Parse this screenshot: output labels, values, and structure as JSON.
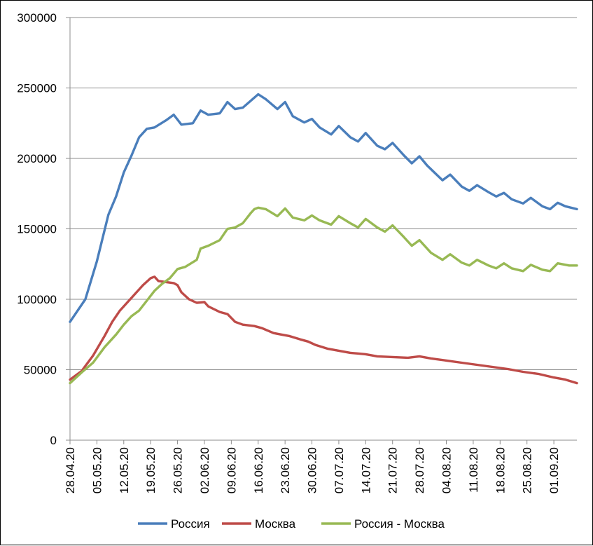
{
  "chart_data": {
    "type": "line",
    "y_ticks": [
      "0",
      "50000",
      "100000",
      "150000",
      "200000",
      "250000",
      "300000"
    ],
    "ylim": [
      0,
      300000
    ],
    "x_tick_labels": [
      "28.04.20",
      "05.05.20",
      "12.05.20",
      "19.05.20",
      "26.05.20",
      "02.06.20",
      "09.06.20",
      "16.06.20",
      "23.06.20",
      "30.06.20",
      "07.07.20",
      "14.07.20",
      "21.07.20",
      "28.07.20",
      "04.08.20",
      "11.08.20",
      "18.08.20",
      "25.08.20",
      "01.09.20"
    ],
    "x_start": "28.04.20",
    "x_end": "07.09.20",
    "grid": "horizontal",
    "legend_position": "bottom",
    "series": [
      {
        "name": "Россия",
        "color": "#4A7EBB",
        "values": [
          [
            "28.04.20",
            84000
          ],
          [
            "02.05.20",
            100000
          ],
          [
            "05.05.20",
            127000
          ],
          [
            "08.05.20",
            160000
          ],
          [
            "10.05.20",
            173000
          ],
          [
            "12.05.20",
            190000
          ],
          [
            "14.05.20",
            202000
          ],
          [
            "16.05.20",
            215000
          ],
          [
            "18.05.20",
            221000
          ],
          [
            "20.05.20",
            222000
          ],
          [
            "23.05.20",
            227000
          ],
          [
            "25.05.20",
            231000
          ],
          [
            "27.05.20",
            224000
          ],
          [
            "30.05.20",
            225000
          ],
          [
            "01.06.20",
            234000
          ],
          [
            "03.06.20",
            231000
          ],
          [
            "06.06.20",
            232000
          ],
          [
            "08.06.20",
            240000
          ],
          [
            "10.06.20",
            235000
          ],
          [
            "12.06.20",
            236000
          ],
          [
            "16.06.20",
            245500
          ],
          [
            "18.06.20",
            242000
          ],
          [
            "21.06.20",
            235000
          ],
          [
            "23.06.20",
            240000
          ],
          [
            "25.06.20",
            230000
          ],
          [
            "28.06.20",
            225500
          ],
          [
            "30.06.20",
            228000
          ],
          [
            "02.07.20",
            222000
          ],
          [
            "05.07.20",
            217000
          ],
          [
            "07.07.20",
            223000
          ],
          [
            "10.07.20",
            215000
          ],
          [
            "12.07.20",
            212000
          ],
          [
            "14.07.20",
            218000
          ],
          [
            "17.07.20",
            209000
          ],
          [
            "19.07.20",
            206500
          ],
          [
            "21.07.20",
            211000
          ],
          [
            "24.07.20",
            202000
          ],
          [
            "26.07.20",
            196500
          ],
          [
            "28.07.20",
            201500
          ],
          [
            "30.07.20",
            195000
          ],
          [
            "03.08.20",
            184500
          ],
          [
            "05.08.20",
            188500
          ],
          [
            "08.08.20",
            180000
          ],
          [
            "10.08.20",
            177000
          ],
          [
            "12.08.20",
            181000
          ],
          [
            "15.08.20",
            176000
          ],
          [
            "17.08.20",
            173000
          ],
          [
            "19.08.20",
            175500
          ],
          [
            "21.08.20",
            171000
          ],
          [
            "24.08.20",
            168000
          ],
          [
            "26.08.20",
            172000
          ],
          [
            "29.08.20",
            166000
          ],
          [
            "31.08.20",
            164000
          ],
          [
            "02.09.20",
            168500
          ],
          [
            "04.09.20",
            166000
          ],
          [
            "07.09.20",
            164000
          ]
        ]
      },
      {
        "name": "Москва",
        "color": "#BE4B48",
        "values": [
          [
            "28.04.20",
            43000
          ],
          [
            "01.05.20",
            49000
          ],
          [
            "04.05.20",
            60000
          ],
          [
            "07.05.20",
            74000
          ],
          [
            "09.05.20",
            84000
          ],
          [
            "11.05.20",
            92000
          ],
          [
            "13.05.20",
            98000
          ],
          [
            "15.05.20",
            104000
          ],
          [
            "17.05.20",
            110000
          ],
          [
            "19.05.20",
            115000
          ],
          [
            "20.05.20",
            116000
          ],
          [
            "21.05.20",
            113000
          ],
          [
            "25.05.20",
            111500
          ],
          [
            "26.05.20",
            110000
          ],
          [
            "27.05.20",
            105000
          ],
          [
            "29.05.20",
            100000
          ],
          [
            "31.05.20",
            97500
          ],
          [
            "02.06.20",
            98000
          ],
          [
            "03.06.20",
            95000
          ],
          [
            "06.06.20",
            91000
          ],
          [
            "08.06.20",
            89500
          ],
          [
            "10.06.20",
            84000
          ],
          [
            "12.06.20",
            82000
          ],
          [
            "15.06.20",
            81000
          ],
          [
            "17.06.20",
            79500
          ],
          [
            "20.06.20",
            76000
          ],
          [
            "22.06.20",
            75000
          ],
          [
            "24.06.20",
            74000
          ],
          [
            "27.06.20",
            71500
          ],
          [
            "29.06.20",
            70000
          ],
          [
            "01.07.20",
            67500
          ],
          [
            "04.07.20",
            65000
          ],
          [
            "07.07.20",
            63500
          ],
          [
            "10.07.20",
            62000
          ],
          [
            "14.07.20",
            61000
          ],
          [
            "17.07.20",
            59500
          ],
          [
            "21.07.20",
            59000
          ],
          [
            "25.07.20",
            58500
          ],
          [
            "28.07.20",
            59500
          ],
          [
            "31.07.20",
            58000
          ],
          [
            "04.08.20",
            56500
          ],
          [
            "08.08.20",
            55000
          ],
          [
            "12.08.20",
            53500
          ],
          [
            "16.08.20",
            52000
          ],
          [
            "20.08.20",
            50500
          ],
          [
            "24.08.20",
            48500
          ],
          [
            "28.08.20",
            47000
          ],
          [
            "01.09.20",
            44500
          ],
          [
            "04.09.20",
            43000
          ],
          [
            "07.09.20",
            40500
          ]
        ]
      },
      {
        "name": "Россия - Москва",
        "color": "#98B954",
        "values": [
          [
            "28.04.20",
            40500
          ],
          [
            "01.05.20",
            48000
          ],
          [
            "04.05.20",
            55000
          ],
          [
            "07.05.20",
            66000
          ],
          [
            "10.05.20",
            75000
          ],
          [
            "12.05.20",
            82000
          ],
          [
            "14.05.20",
            88000
          ],
          [
            "16.05.20",
            92000
          ],
          [
            "18.05.20",
            99000
          ],
          [
            "20.05.20",
            106000
          ],
          [
            "22.05.20",
            111000
          ],
          [
            "24.05.20",
            115000
          ],
          [
            "26.05.20",
            121500
          ],
          [
            "28.05.20",
            123000
          ],
          [
            "31.05.20",
            128000
          ],
          [
            "01.06.20",
            136000
          ],
          [
            "03.06.20",
            138000
          ],
          [
            "06.06.20",
            142000
          ],
          [
            "08.06.20",
            150000
          ],
          [
            "10.06.20",
            151000
          ],
          [
            "12.06.20",
            154000
          ],
          [
            "14.06.20",
            161000
          ],
          [
            "15.06.20",
            164000
          ],
          [
            "16.06.20",
            165000
          ],
          [
            "18.06.20",
            164000
          ],
          [
            "21.06.20",
            159000
          ],
          [
            "23.06.20",
            164500
          ],
          [
            "25.06.20",
            158000
          ],
          [
            "28.06.20",
            156000
          ],
          [
            "30.06.20",
            159500
          ],
          [
            "02.07.20",
            156000
          ],
          [
            "05.07.20",
            153000
          ],
          [
            "07.07.20",
            159000
          ],
          [
            "10.07.20",
            154000
          ],
          [
            "12.07.20",
            151000
          ],
          [
            "14.07.20",
            157000
          ],
          [
            "17.07.20",
            151000
          ],
          [
            "19.07.20",
            148000
          ],
          [
            "21.07.20",
            152500
          ],
          [
            "24.07.20",
            144000
          ],
          [
            "26.07.20",
            138000
          ],
          [
            "28.07.20",
            142000
          ],
          [
            "31.07.20",
            133000
          ],
          [
            "03.08.20",
            128000
          ],
          [
            "05.08.20",
            132000
          ],
          [
            "08.08.20",
            126000
          ],
          [
            "10.08.20",
            124000
          ],
          [
            "12.08.20",
            128000
          ],
          [
            "15.08.20",
            124000
          ],
          [
            "17.08.20",
            122000
          ],
          [
            "19.08.20",
            125500
          ],
          [
            "21.08.20",
            122000
          ],
          [
            "24.08.20",
            120000
          ],
          [
            "26.08.20",
            124500
          ],
          [
            "29.08.20",
            121000
          ],
          [
            "31.08.20",
            120000
          ],
          [
            "02.09.20",
            125500
          ],
          [
            "05.09.20",
            124000
          ],
          [
            "07.09.20",
            124000
          ]
        ]
      }
    ]
  }
}
